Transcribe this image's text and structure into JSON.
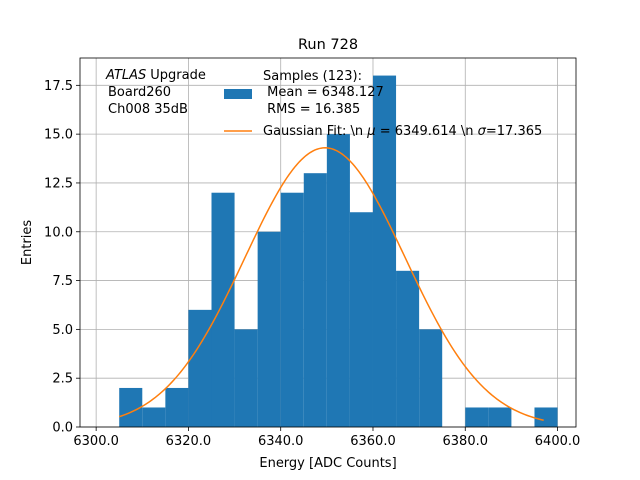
{
  "chart_data": {
    "type": "bar",
    "title": "Run 728",
    "xlabel": "Energy [ADC Counts]",
    "ylabel": "Entries",
    "xlim": [
      6296.5,
      6404.0
    ],
    "ylim": [
      0.0,
      18.9
    ],
    "grid": true,
    "xticks": [
      6300.0,
      6320.0,
      6340.0,
      6360.0,
      6380.0,
      6400.0
    ],
    "xtick_labels": [
      "6300.0",
      "6320.0",
      "6340.0",
      "6360.0",
      "6380.0",
      "6400.0"
    ],
    "yticks": [
      0.0,
      2.5,
      5.0,
      7.5,
      10.0,
      12.5,
      15.0,
      17.5
    ],
    "ytick_labels": [
      "0.0",
      "2.5",
      "5.0",
      "7.5",
      "10.0",
      "12.5",
      "15.0",
      "17.5"
    ],
    "bar_color": "#1f77b4",
    "fit_color": "#ff7f0e",
    "bin_edges": [
      6305.0,
      6310.0,
      6315.0,
      6320.0,
      6325.0,
      6330.0,
      6335.0,
      6340.0,
      6345.0,
      6350.0,
      6355.0,
      6360.0,
      6365.0,
      6370.0,
      6375.0,
      6380.0,
      6385.0,
      6390.0,
      6395.0,
      6400.0
    ],
    "counts": [
      2,
      1,
      2,
      6,
      12,
      5,
      10,
      12,
      13,
      15,
      11,
      18,
      8,
      5,
      0,
      1,
      1,
      0,
      1
    ],
    "series": [
      {
        "name": "Samples (123):\n Mean = 6348.127\n RMS = 16.385",
        "kind": "histogram"
      },
      {
        "name": "Gaussian Fit: \\n $\\mu$ = 6349.614 \\n $\\sigma$=17.365",
        "kind": "line"
      }
    ],
    "fit": {
      "amplitude": 14.3,
      "mu": 6349.614,
      "sigma": 17.365,
      "x_range": [
        6305.0,
        6397.0
      ]
    },
    "annotation": {
      "atlas": "ATLAS",
      "upgrade": "Upgrade",
      "line2": "Board260",
      "line3": "Ch008 35dB"
    },
    "legend": {
      "position": "top-center",
      "samples_header": "Samples (123):",
      "samples_mean": "Mean = 6348.127",
      "samples_rms": "RMS = 16.385",
      "fit_prefix": "Gaussian Fit: \\n ",
      "fit_mu_symbol": "μ",
      "fit_mid": " = 6349.614 \\n ",
      "fit_sigma_symbol": "σ",
      "fit_suffix": "=17.365"
    }
  }
}
